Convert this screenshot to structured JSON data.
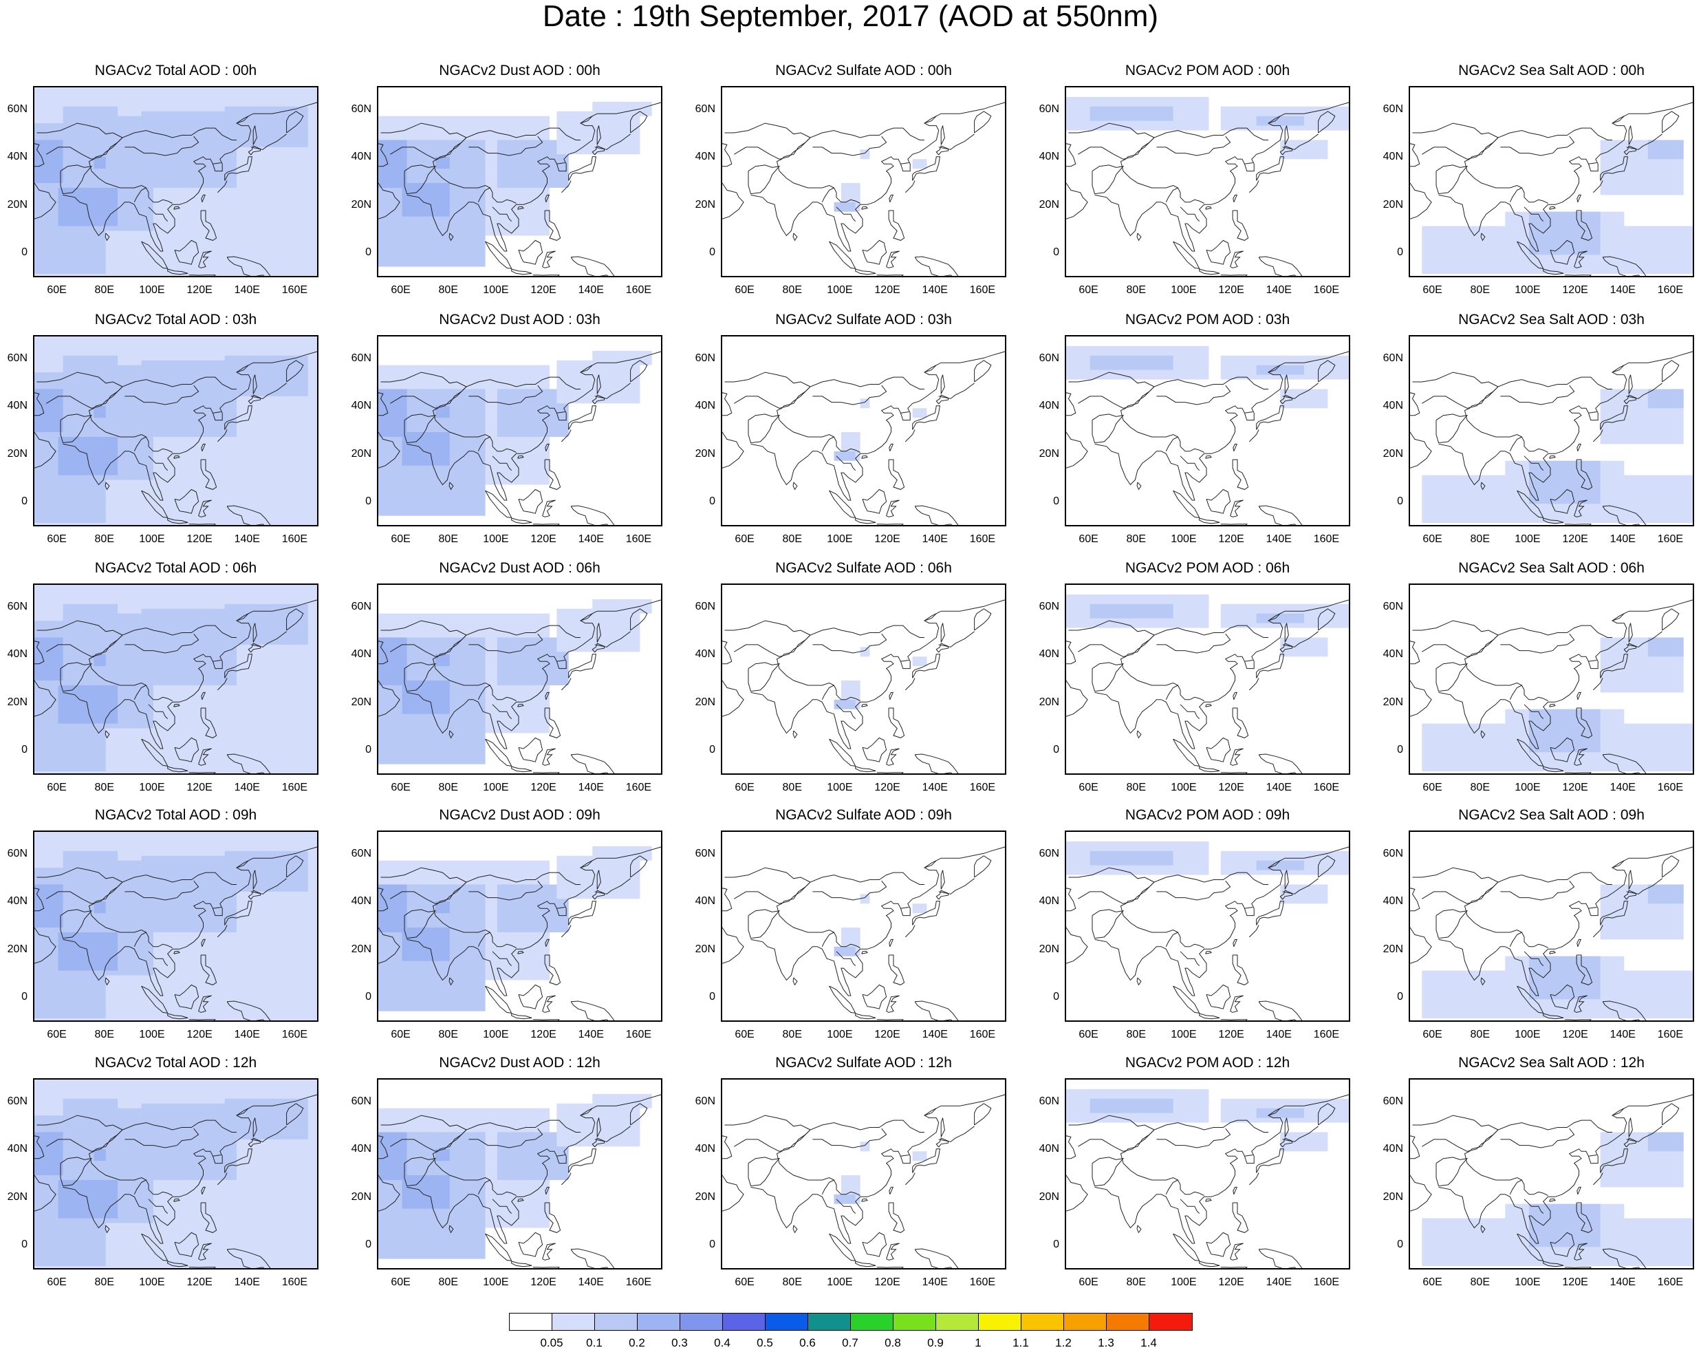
{
  "title": "Date : 19th September, 2017 (AOD at 550nm)",
  "panels": [
    [
      "NGACv2 Total AOD : 00h",
      "NGACv2 Dust AOD : 00h",
      "NGACv2 Sulfate AOD : 00h",
      "NGACv2 POM AOD : 00h",
      "NGACv2 Sea Salt AOD : 00h"
    ],
    [
      "NGACv2 Total AOD : 03h",
      "NGACv2 Dust AOD : 03h",
      "NGACv2 Sulfate AOD : 03h",
      "NGACv2 POM AOD : 03h",
      "NGACv2 Sea Salt AOD : 03h"
    ],
    [
      "NGACv2 Total AOD : 06h",
      "NGACv2 Dust AOD : 06h",
      "NGACv2 Sulfate AOD : 06h",
      "NGACv2 POM AOD : 06h",
      "NGACv2 Sea Salt AOD : 06h"
    ],
    [
      "NGACv2 Total AOD : 09h",
      "NGACv2 Dust AOD : 09h",
      "NGACv2 Sulfate AOD : 09h",
      "NGACv2 POM AOD : 09h",
      "NGACv2 Sea Salt  AOD : 09h"
    ],
    [
      "NGACv2 Total AOD  : 12h",
      "NGACv2 Dust AOD : 12h",
      "NGACv2 Sulfate AOD : 12h",
      "NGACv2 POM  AOD : 12h",
      "NGACv2 Sea Salt  AOD : 12h"
    ]
  ],
  "lat_ticks": [
    "60N",
    "40N",
    "20N",
    "0"
  ],
  "lon_ticks": [
    "60E",
    "80E",
    "100E",
    "120E",
    "140E",
    "160E"
  ],
  "colorbar": {
    "labels": [
      "0.05",
      "0.1",
      "0.2",
      "0.3",
      "0.4",
      "0.5",
      "0.6",
      "0.7",
      "0.8",
      "0.9",
      "1",
      "1.1",
      "1.2",
      "1.3",
      "1.4"
    ],
    "colors": [
      "#ffffff",
      "#d4defa",
      "#b8c9f6",
      "#9db4f2",
      "#7f96ee",
      "#5a64e6",
      "#0a5ce8",
      "#11918d",
      "#2bd12b",
      "#79e01e",
      "#b4e93a",
      "#f8f200",
      "#f9c300",
      "#f7a100",
      "#f57a00",
      "#f41b0c"
    ]
  },
  "species_colors": {
    "total": [
      "#d4defa",
      "#b8c9f6",
      "#9db4f2"
    ],
    "dust": [
      "#d4defa",
      "#b8c9f6",
      "#9db4f2"
    ],
    "sulfate": [
      "#d4defa",
      "#b8c9f6"
    ],
    "pom": [
      "#d4defa",
      "#b8c9f6"
    ],
    "seasalt": [
      "#d4defa",
      "#b8c9f6"
    ]
  }
}
